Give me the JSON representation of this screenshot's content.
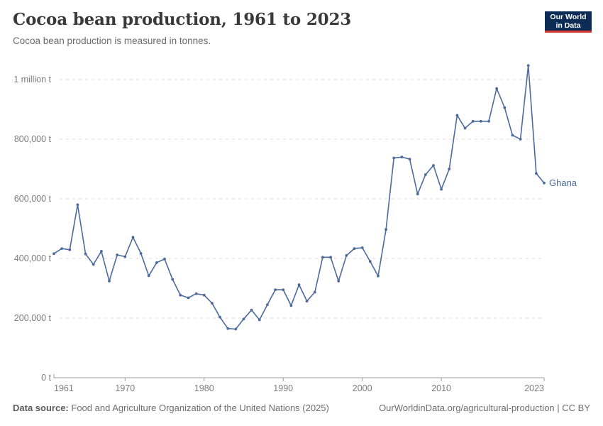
{
  "header": {
    "title": "Cocoa bean production, 1961 to 2023",
    "subtitle": "Cocoa bean production is measured in tonnes.",
    "logo_line1": "Our World",
    "logo_line2": "in Data"
  },
  "chart_data": {
    "type": "line",
    "title": "Cocoa bean production, 1961 to 2023",
    "unit": "tonnes",
    "xlim": [
      1961,
      2023
    ],
    "ylim": [
      0,
      1100000
    ],
    "grid": "dashed-horizontal-gridlines",
    "legend": "end-of-line-label",
    "x_ticks": [
      1961,
      1970,
      1980,
      1990,
      2000,
      2010,
      2023
    ],
    "y_ticks": [
      {
        "value": 0,
        "label": "0 t"
      },
      {
        "value": 200000,
        "label": "200,000 t"
      },
      {
        "value": 400000,
        "label": "400,000 t"
      },
      {
        "value": 600000,
        "label": "600,000 t"
      },
      {
        "value": 800000,
        "label": "800,000 t"
      },
      {
        "value": 1000000,
        "label": "1 million t"
      }
    ],
    "series": [
      {
        "name": "Ghana",
        "color": "#4c6a9c",
        "x": [
          1961,
          1962,
          1963,
          1964,
          1965,
          1966,
          1967,
          1968,
          1969,
          1970,
          1971,
          1972,
          1973,
          1974,
          1975,
          1976,
          1977,
          1978,
          1979,
          1980,
          1981,
          1982,
          1983,
          1984,
          1985,
          1986,
          1987,
          1988,
          1989,
          1990,
          1991,
          1992,
          1993,
          1994,
          1995,
          1996,
          1997,
          1998,
          1999,
          2000,
          2001,
          2002,
          2003,
          2004,
          2005,
          2006,
          2007,
          2008,
          2009,
          2010,
          2011,
          2012,
          2013,
          2014,
          2015,
          2016,
          2017,
          2018,
          2019,
          2020,
          2021,
          2022,
          2023
        ],
        "values": [
          416000,
          433000,
          429000,
          580000,
          415000,
          380000,
          424000,
          324000,
          412000,
          406000,
          471000,
          417000,
          342000,
          386000,
          398000,
          330000,
          277000,
          268000,
          282000,
          277000,
          250000,
          203000,
          165000,
          163000,
          197000,
          227000,
          194000,
          245000,
          295000,
          295000,
          242000,
          312000,
          257000,
          287000,
          404000,
          404000,
          324000,
          410000,
          433000,
          436000,
          390000,
          341000,
          497000,
          737000,
          740000,
          733000,
          616000,
          681000,
          712000,
          632000,
          700000,
          880000,
          837000,
          860000,
          860000,
          860000,
          970000,
          906000,
          813000,
          800000,
          1047000,
          685000,
          653000
        ]
      }
    ]
  },
  "footer": {
    "data_source_label": "Data source:",
    "data_source_text": "Food and Agriculture Organization of the United Nations (2025)",
    "attribution": "OurWorldinData.org/agricultural-production | CC BY"
  },
  "colors": {
    "line": "#4c6a9c",
    "gridline": "#dcdcdc",
    "axis": "#9e9e9e",
    "tick_label": "#7c7c7c",
    "logo_bg": "#0c2c56",
    "logo_bar": "#d5362c"
  }
}
